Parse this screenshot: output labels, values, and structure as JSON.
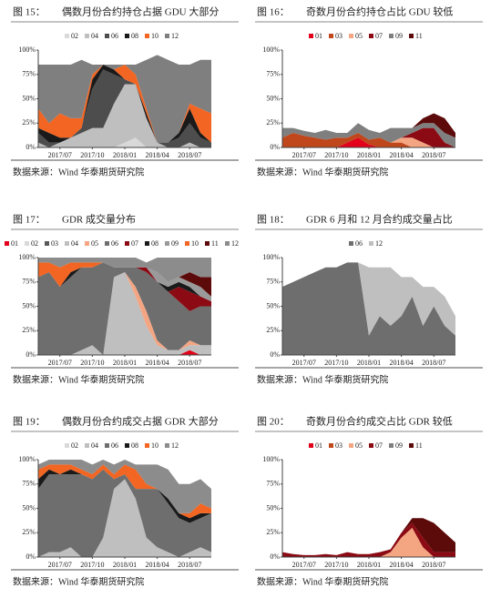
{
  "chart_data": [
    {
      "figure": "图 15：",
      "title": "偶数月份合约持仓占据 GDU 大部分",
      "source": "数据来源：Wind 华泰期货研究院",
      "type": "area",
      "stacked": true,
      "categories": [
        null,
        null,
        "2017/07",
        null,
        null,
        "2017/10",
        null,
        null,
        "2018/01",
        null,
        null,
        "2018/04",
        null,
        null,
        "2018/07",
        null,
        null
      ],
      "ylim": [
        0,
        100
      ],
      "yticks": [
        {
          "value": 0,
          "label": "0%"
        },
        {
          "value": 25,
          "label": "25%"
        },
        {
          "value": 50,
          "label": "50%"
        },
        {
          "value": 75,
          "label": "75%"
        },
        {
          "value": 100,
          "label": "100%"
        }
      ],
      "series": [
        {
          "name": "02",
          "color": "#d9d9d9",
          "values": [
            0,
            0,
            0,
            0,
            0,
            0,
            0,
            0,
            5,
            10,
            0,
            0,
            0,
            0,
            0,
            0,
            0
          ]
        },
        {
          "name": "04",
          "color": "#bfbfbf",
          "values": [
            5,
            0,
            5,
            10,
            15,
            20,
            20,
            45,
            60,
            55,
            30,
            5,
            0,
            0,
            5,
            0,
            0
          ]
        },
        {
          "name": "06",
          "color": "#4d4d4d",
          "values": [
            10,
            5,
            0,
            0,
            5,
            40,
            60,
            30,
            5,
            0,
            0,
            0,
            5,
            10,
            20,
            10,
            5
          ]
        },
        {
          "name": "08",
          "color": "#1a1a1a",
          "values": [
            5,
            10,
            5,
            0,
            0,
            10,
            5,
            5,
            0,
            0,
            5,
            0,
            0,
            5,
            15,
            5,
            0
          ]
        },
        {
          "name": "10",
          "color": "#f26522",
          "values": [
            20,
            10,
            25,
            20,
            10,
            5,
            0,
            0,
            15,
            10,
            5,
            0,
            0,
            0,
            5,
            25,
            30
          ]
        },
        {
          "name": "12",
          "color": "#7f7f7f",
          "values": [
            45,
            60,
            50,
            55,
            60,
            10,
            0,
            5,
            0,
            10,
            50,
            90,
            85,
            70,
            40,
            50,
            55
          ]
        }
      ]
    },
    {
      "figure": "图 16：",
      "title": "奇数月份合约持仓占比 GDU 较低",
      "source": "数据来源：Wind 华泰期货研究院",
      "type": "area",
      "stacked": true,
      "categories": [
        null,
        null,
        "2017/07",
        null,
        null,
        "2017/10",
        null,
        null,
        "2018/01",
        null,
        null,
        "2018/04",
        null,
        null,
        "2018/07",
        null,
        null
      ],
      "ylim": [
        0,
        100
      ],
      "yticks": [
        {
          "value": 0,
          "label": "0%"
        },
        {
          "value": 25,
          "label": "25%"
        },
        {
          "value": 50,
          "label": "50%"
        },
        {
          "value": 75,
          "label": "75%"
        },
        {
          "value": 100,
          "label": "100%"
        }
      ],
      "series": [
        {
          "name": "01",
          "color": "#e2001a",
          "values": [
            0,
            0,
            0,
            0,
            0,
            0,
            5,
            10,
            3,
            0,
            0,
            0,
            0,
            0,
            0,
            0,
            0
          ]
        },
        {
          "name": "03",
          "color": "#c0461b",
          "values": [
            10,
            15,
            12,
            10,
            8,
            10,
            5,
            5,
            5,
            10,
            5,
            5,
            0,
            0,
            0,
            0,
            0
          ]
        },
        {
          "name": "05",
          "color": "#f4a582",
          "values": [
            0,
            0,
            0,
            0,
            0,
            0,
            0,
            0,
            0,
            0,
            0,
            5,
            10,
            5,
            0,
            0,
            0
          ]
        },
        {
          "name": "07",
          "color": "#8b0a14",
          "values": [
            0,
            0,
            0,
            0,
            0,
            0,
            0,
            0,
            0,
            0,
            0,
            0,
            5,
            15,
            20,
            5,
            0
          ]
        },
        {
          "name": "09",
          "color": "#7f7f7f",
          "values": [
            10,
            5,
            5,
            5,
            10,
            5,
            5,
            10,
            10,
            5,
            15,
            10,
            5,
            5,
            5,
            10,
            10
          ]
        },
        {
          "name": "11",
          "color": "#5c0a0a",
          "values": [
            0,
            0,
            0,
            0,
            0,
            0,
            0,
            0,
            0,
            0,
            0,
            0,
            0,
            5,
            10,
            15,
            5
          ]
        }
      ]
    },
    {
      "figure": "图 17：",
      "title": "GDR 成交量分布",
      "source": "数据来源：Wind 华泰期货研究院",
      "type": "area",
      "stacked": true,
      "categories": [
        null,
        null,
        "2017/07",
        null,
        null,
        "2017/10",
        null,
        null,
        "2018/01",
        null,
        null,
        "2018/04",
        null,
        null,
        "2018/07",
        null,
        null
      ],
      "ylim": [
        0,
        100
      ],
      "yticks": [
        {
          "value": 0,
          "label": "0%"
        },
        {
          "value": 25,
          "label": "25%"
        },
        {
          "value": 50,
          "label": "50%"
        },
        {
          "value": 75,
          "label": "75%"
        },
        {
          "value": 100,
          "label": "100%"
        }
      ],
      "series": [
        {
          "name": "01",
          "color": "#e2001a",
          "values": [
            0,
            0,
            0,
            0,
            0,
            0,
            0,
            0,
            0,
            0,
            0,
            0,
            0,
            0,
            5,
            0,
            0
          ]
        },
        {
          "name": "02",
          "color": "#d9d9d9",
          "values": [
            0,
            0,
            0,
            0,
            0,
            0,
            0,
            0,
            0,
            0,
            0,
            0,
            0,
            0,
            0,
            0,
            0
          ]
        },
        {
          "name": "03",
          "color": "#595959",
          "values": [
            0,
            0,
            0,
            0,
            0,
            0,
            0,
            0,
            0,
            0,
            0,
            0,
            0,
            0,
            0,
            0,
            0
          ]
        },
        {
          "name": "04",
          "color": "#bfbfbf",
          "values": [
            0,
            0,
            0,
            0,
            5,
            10,
            0,
            80,
            85,
            60,
            30,
            10,
            5,
            5,
            5,
            10,
            10
          ]
        },
        {
          "name": "05",
          "color": "#f4a582",
          "values": [
            0,
            0,
            0,
            0,
            0,
            0,
            0,
            0,
            0,
            10,
            15,
            5,
            0,
            0,
            5,
            0,
            0
          ]
        },
        {
          "name": "06",
          "color": "#6e6e6e",
          "values": [
            80,
            85,
            70,
            80,
            85,
            80,
            95,
            10,
            5,
            20,
            40,
            60,
            60,
            50,
            30,
            40,
            40
          ]
        },
        {
          "name": "07",
          "color": "#8b0a14",
          "values": [
            0,
            0,
            0,
            0,
            0,
            0,
            0,
            0,
            0,
            0,
            5,
            0,
            0,
            15,
            20,
            10,
            5
          ]
        },
        {
          "name": "08",
          "color": "#1a1a1a",
          "values": [
            0,
            0,
            0,
            5,
            0,
            0,
            0,
            0,
            0,
            0,
            0,
            0,
            5,
            5,
            5,
            0,
            0
          ]
        },
        {
          "name": "09",
          "color": "#9a9a9a",
          "values": [
            0,
            0,
            0,
            0,
            0,
            0,
            0,
            0,
            0,
            0,
            0,
            10,
            5,
            5,
            5,
            10,
            5
          ]
        },
        {
          "name": "10",
          "color": "#f26522",
          "values": [
            15,
            10,
            20,
            10,
            5,
            5,
            0,
            0,
            0,
            0,
            0,
            0,
            0,
            0,
            0,
            0,
            0
          ]
        },
        {
          "name": "11",
          "color": "#5c0a0a",
          "values": [
            0,
            0,
            0,
            0,
            0,
            0,
            0,
            0,
            0,
            0,
            0,
            0,
            0,
            0,
            10,
            10,
            20
          ]
        },
        {
          "name": "12",
          "color": "#8c8c8c",
          "values": [
            5,
            5,
            10,
            5,
            5,
            5,
            5,
            10,
            10,
            10,
            5,
            15,
            25,
            20,
            15,
            20,
            20
          ]
        }
      ]
    },
    {
      "figure": "图 18：",
      "title": "GDR 6 月和 12 月合约成交量占比",
      "source": "数据来源：Wind 华泰期货研究院",
      "type": "area",
      "stacked": true,
      "categories": [
        null,
        null,
        "2017/07",
        null,
        null,
        "2017/10",
        null,
        null,
        "2018/01",
        null,
        null,
        "2018/04",
        null,
        null,
        "2018/07",
        null,
        null
      ],
      "ylim": [
        0,
        100
      ],
      "yticks": [
        {
          "value": 0,
          "label": "0%"
        },
        {
          "value": 25,
          "label": "25%"
        },
        {
          "value": 50,
          "label": "50%"
        },
        {
          "value": 75,
          "label": "75%"
        },
        {
          "value": 100,
          "label": "100%"
        }
      ],
      "series": [
        {
          "name": "06",
          "color": "#6e6e6e",
          "values": [
            70,
            75,
            80,
            85,
            90,
            90,
            95,
            95,
            20,
            40,
            30,
            40,
            60,
            30,
            50,
            30,
            20
          ]
        },
        {
          "name": "12",
          "color": "#bfbfbf",
          "values": [
            0,
            0,
            0,
            0,
            0,
            0,
            0,
            0,
            70,
            50,
            60,
            40,
            20,
            40,
            20,
            30,
            20
          ]
        }
      ]
    },
    {
      "figure": "图 19：",
      "title": "偶数月份合约成交占据 GDR 大部分",
      "source": "数据来源：Wind 华泰期货研究院",
      "type": "area",
      "stacked": true,
      "categories": [
        null,
        null,
        "2017/07",
        null,
        null,
        "2017/10",
        null,
        null,
        "2018/01",
        null,
        null,
        "2018/04",
        null,
        null,
        "2018/07",
        null,
        null
      ],
      "ylim": [
        0,
        100
      ],
      "yticks": [
        {
          "value": 0,
          "label": "0%"
        },
        {
          "value": 25,
          "label": "25%"
        },
        {
          "value": 50,
          "label": "50%"
        },
        {
          "value": 75,
          "label": "75%"
        },
        {
          "value": 100,
          "label": "100%"
        }
      ],
      "series": [
        {
          "name": "02",
          "color": "#d9d9d9",
          "values": [
            0,
            0,
            0,
            0,
            0,
            0,
            0,
            0,
            0,
            0,
            0,
            0,
            0,
            0,
            0,
            0,
            0
          ]
        },
        {
          "name": "04",
          "color": "#bfbfbf",
          "values": [
            0,
            5,
            5,
            10,
            0,
            0,
            20,
            70,
            80,
            60,
            20,
            10,
            5,
            0,
            5,
            10,
            5
          ]
        },
        {
          "name": "06",
          "color": "#6e6e6e",
          "values": [
            70,
            80,
            80,
            75,
            85,
            80,
            70,
            10,
            5,
            10,
            50,
            60,
            50,
            40,
            30,
            30,
            40
          ]
        },
        {
          "name": "08",
          "color": "#1a1a1a",
          "values": [
            10,
            5,
            0,
            5,
            0,
            0,
            0,
            0,
            0,
            0,
            0,
            0,
            5,
            5,
            5,
            5,
            0
          ]
        },
        {
          "name": "10",
          "color": "#f26522",
          "values": [
            10,
            5,
            10,
            5,
            5,
            5,
            5,
            5,
            10,
            20,
            5,
            0,
            0,
            0,
            5,
            10,
            5
          ]
        },
        {
          "name": "12",
          "color": "#8c8c8c",
          "values": [
            5,
            5,
            5,
            5,
            10,
            10,
            5,
            10,
            5,
            5,
            20,
            25,
            30,
            30,
            30,
            25,
            20
          ]
        }
      ]
    },
    {
      "figure": "图 20：",
      "title": "奇数月份合约成交占比 GDR 较低",
      "source": "数据来源：Wind 华泰期货研究院",
      "type": "area",
      "stacked": true,
      "categories": [
        null,
        null,
        "2017/07",
        null,
        null,
        "2017/10",
        null,
        null,
        "2018/01",
        null,
        null,
        "2018/04",
        null,
        null,
        "2018/07",
        null,
        null
      ],
      "ylim": [
        0,
        100
      ],
      "yticks": [
        {
          "value": 0,
          "label": "0%"
        },
        {
          "value": 25,
          "label": "25%"
        },
        {
          "value": 50,
          "label": "50%"
        },
        {
          "value": 75,
          "label": "75%"
        },
        {
          "value": 100,
          "label": "100%"
        }
      ],
      "series": [
        {
          "name": "01",
          "color": "#e2001a",
          "values": [
            0,
            0,
            0,
            0,
            0,
            0,
            0,
            0,
            0,
            0,
            0,
            0,
            0,
            0,
            0,
            0,
            0
          ]
        },
        {
          "name": "03",
          "color": "#c0461b",
          "values": [
            0,
            0,
            0,
            0,
            0,
            0,
            0,
            0,
            0,
            0,
            0,
            0,
            0,
            0,
            0,
            0,
            0
          ]
        },
        {
          "name": "05",
          "color": "#f4a582",
          "values": [
            0,
            0,
            0,
            0,
            0,
            0,
            0,
            0,
            0,
            0,
            5,
            20,
            30,
            10,
            0,
            0,
            0
          ]
        },
        {
          "name": "07",
          "color": "#8b0a14",
          "values": [
            5,
            3,
            2,
            2,
            3,
            2,
            5,
            3,
            3,
            5,
            3,
            5,
            5,
            10,
            5,
            5,
            5
          ]
        },
        {
          "name": "09",
          "color": "#7f7f7f",
          "values": [
            0,
            0,
            0,
            0,
            0,
            0,
            0,
            0,
            0,
            0,
            0,
            0,
            0,
            0,
            0,
            0,
            0
          ]
        },
        {
          "name": "11",
          "color": "#5c0a0a",
          "values": [
            0,
            0,
            0,
            0,
            0,
            0,
            0,
            0,
            0,
            0,
            0,
            0,
            5,
            20,
            30,
            20,
            10
          ]
        }
      ]
    }
  ]
}
